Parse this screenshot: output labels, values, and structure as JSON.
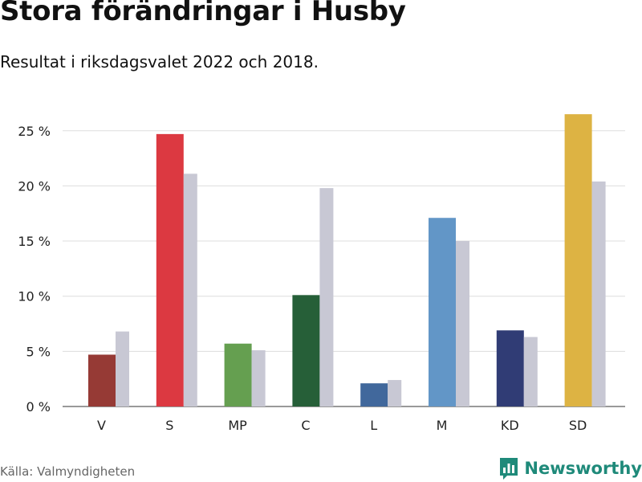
{
  "header": {
    "title": "Stora förändringar i Husby",
    "subtitle": "Resultat i riksdagsvalet 2022 och 2018."
  },
  "footer": {
    "source": "Källa: Valmyndigheten",
    "brand": "Newsworthy",
    "brand_icon": "bar-chart-icon",
    "brand_color": "#1f8a7a"
  },
  "chart_data": {
    "type": "bar",
    "title": "Stora förändringar i Husby",
    "subtitle": "Resultat i riksdagsvalet 2022 och 2018.",
    "xlabel": "",
    "ylabel": "",
    "ylim": [
      0,
      25
    ],
    "y_ticks": [
      0,
      5,
      10,
      15,
      20,
      25
    ],
    "y_tick_labels": [
      "0 %",
      "5 %",
      "10 %",
      "15 %",
      "20 %",
      "25 %"
    ],
    "grid": true,
    "legend": "none",
    "categories": [
      "V",
      "S",
      "MP",
      "C",
      "L",
      "M",
      "KD",
      "SD"
    ],
    "series": [
      {
        "values": [
          4.7,
          24.7,
          5.7,
          10.1,
          2.1,
          17.1,
          6.9,
          26.5
        ],
        "colors": [
          "#963a35",
          "#dc3941",
          "#659f50",
          "#265f38",
          "#41689c",
          "#6296c7",
          "#303c75",
          "#ddb343"
        ]
      },
      {
        "values": [
          6.8,
          21.1,
          5.1,
          19.8,
          2.4,
          15.0,
          6.3,
          20.4
        ],
        "color": "#c8c8d4"
      }
    ]
  }
}
